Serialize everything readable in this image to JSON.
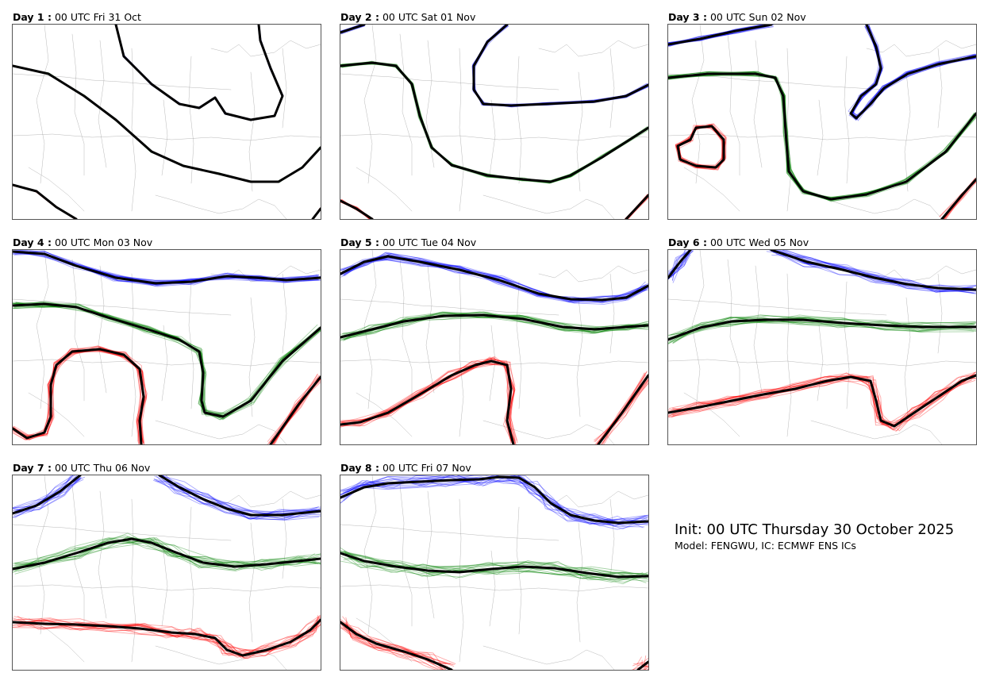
{
  "figure": {
    "init_title": "Init: 00 UTC Thursday 30 October 2025",
    "model_line": "Model: FENGWU, IC: ECMWF ENS ICs"
  },
  "colors": {
    "upper_contour": "#0000ff",
    "middle_contour": "#008000",
    "lower_contour": "#ff0000",
    "ensemble_mean": "#000000",
    "basemap_lines": "#888888"
  },
  "panels": [
    {
      "day_label": "Day 1 :",
      "valid_time": "00 UTC Fri 31 Oct"
    },
    {
      "day_label": "Day 2 :",
      "valid_time": "00 UTC Sat 01 Nov"
    },
    {
      "day_label": "Day 3 :",
      "valid_time": "00 UTC Sun 02 Nov"
    },
    {
      "day_label": "Day 4 :",
      "valid_time": "00 UTC Mon 03 Nov"
    },
    {
      "day_label": "Day 5 :",
      "valid_time": "00 UTC Tue 04 Nov"
    },
    {
      "day_label": "Day 6 :",
      "valid_time": "00 UTC Wed 05 Nov"
    },
    {
      "day_label": "Day 7 :",
      "valid_time": "00 UTC Thu 06 Nov"
    },
    {
      "day_label": "Day 8 :",
      "valid_time": "00 UTC Fri 07 Nov"
    }
  ]
}
